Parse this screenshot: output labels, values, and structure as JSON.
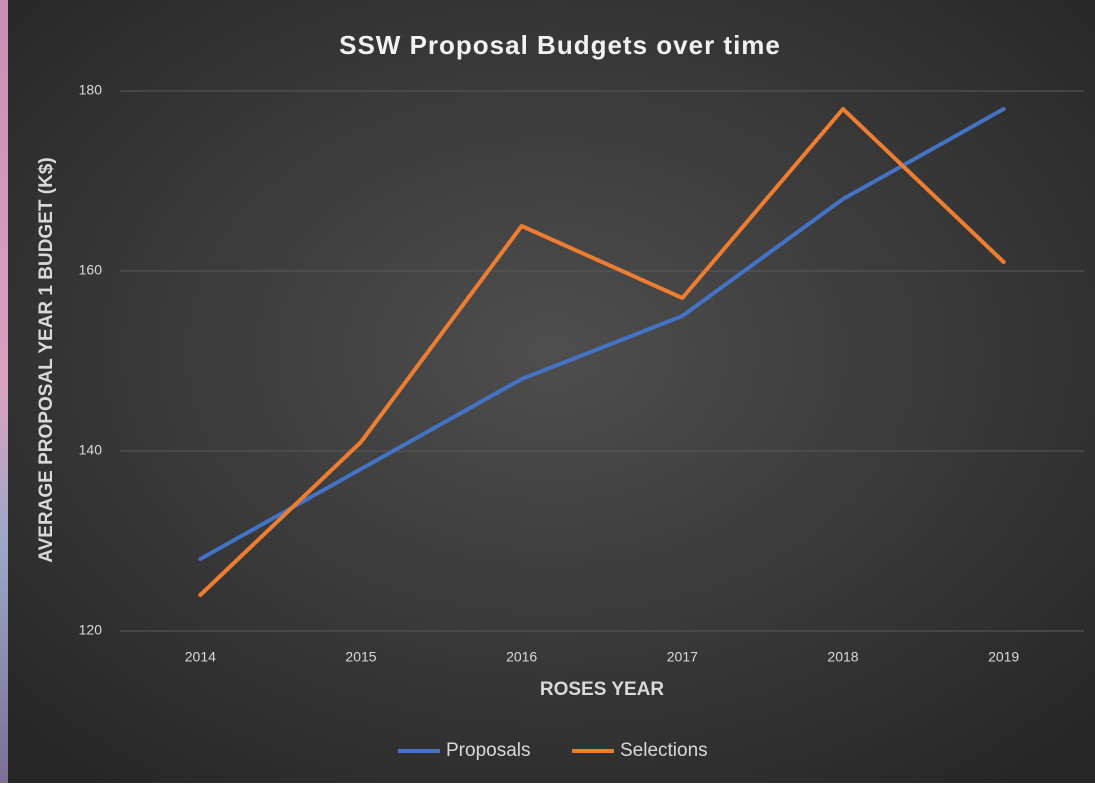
{
  "chart_data": {
    "type": "line",
    "title": "SSW Proposal Budgets over time",
    "x_label": "ROSES YEAR",
    "y_label": "AVERAGE PROPOSAL YEAR 1 BUDGET (K$)",
    "categories": [
      "2014",
      "2015",
      "2016",
      "2017",
      "2018",
      "2019"
    ],
    "series": [
      {
        "name": "Proposals",
        "color": "#4472c4",
        "values": [
          128,
          138,
          148,
          155,
          168,
          178
        ]
      },
      {
        "name": "Selections",
        "color": "#ed7d31",
        "values": [
          124,
          141,
          165,
          157,
          178,
          161
        ]
      }
    ],
    "ylim": [
      120,
      180
    ],
    "yticks": [
      120,
      140,
      160,
      180
    ],
    "grid": true,
    "legend": "bottom"
  }
}
